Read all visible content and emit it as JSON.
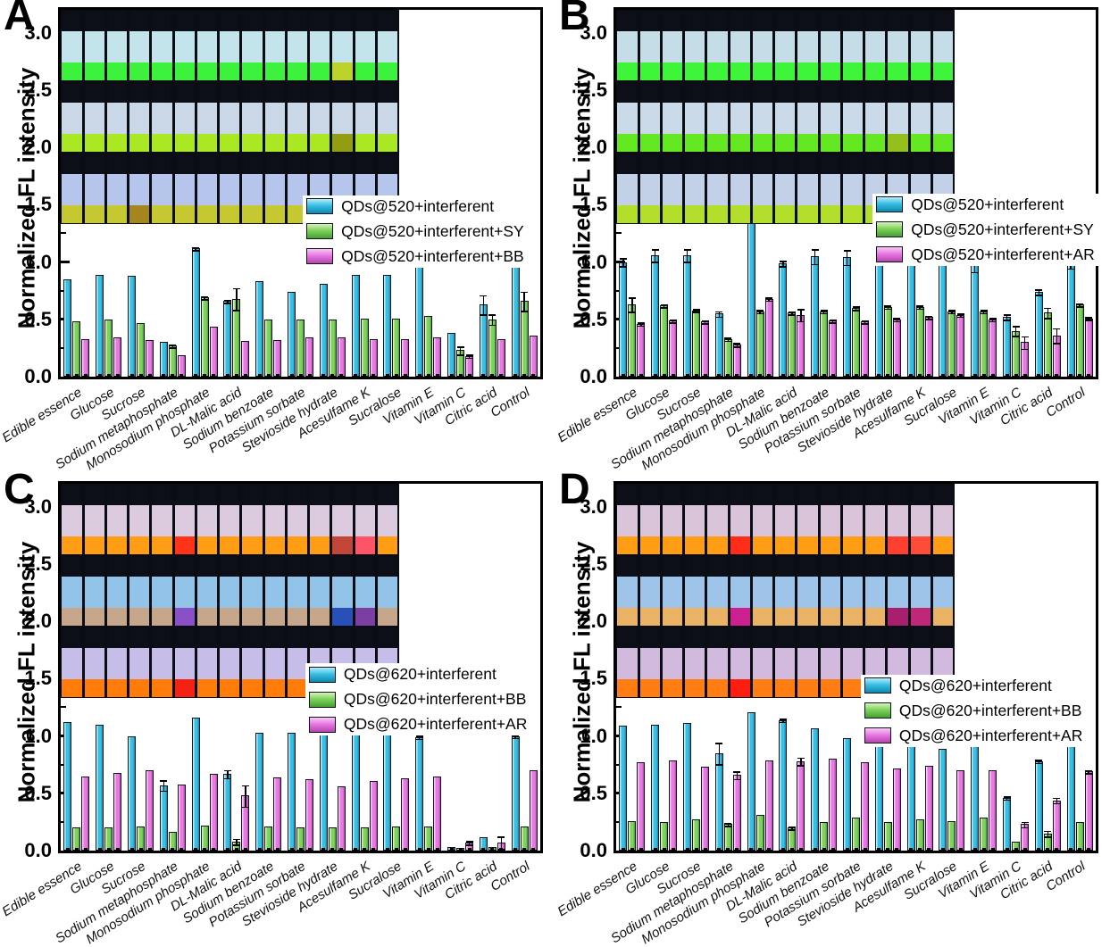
{
  "figure": {
    "ylabel": "Normalized FL intensity",
    "panel_letters": [
      "A",
      "B",
      "C",
      "D"
    ]
  },
  "axis": {
    "yticks": [
      "0.0",
      "0.5",
      "1.0",
      "1.5",
      "2.0",
      "2.5",
      "3.0"
    ],
    "ymax": 3.2
  },
  "colors": {
    "cyan": {
      "base": "#38bfe4",
      "light": "#b8ecf8",
      "dark": "#0f87ae"
    },
    "green": {
      "base": "#7fd35c",
      "light": "#d6f3bb",
      "dark": "#45a032"
    },
    "magenta": {
      "base": "#e97ae5",
      "light": "#f7c9f3",
      "dark": "#b445ac"
    },
    "outline": "#11131f"
  },
  "categories": [
    "Edible essence",
    "Glucose",
    "Sucrose",
    "Sodium metaphosphate",
    "Monosodium phosphate",
    "DL-Malic acid",
    "Sodium benzoate",
    "Potassium sorbate",
    "Stevioside hydrate",
    "Acesulfame K",
    "Sucralose",
    "Vitamin E",
    "Vitamin C",
    "Citric acid",
    "Control"
  ],
  "chart_data": [
    {
      "type": "bar",
      "panel": "A",
      "ylabel": "Normalized FL intensity",
      "ylim": [
        0,
        3.2
      ],
      "legend_pos": [
        0.505,
        0.505
      ],
      "categories": [
        "Edible essence",
        "Glucose",
        "Sucrose",
        "Sodium metaphosphate",
        "Monosodium phosphate",
        "DL-Malic acid",
        "Sodium benzoate",
        "Potassium sorbate",
        "Stevioside hydrate",
        "Acesulfame K",
        "Sucralose",
        "Vitamin E",
        "Vitamin C",
        "Citric acid",
        "Control"
      ],
      "series": [
        {
          "name": "QDs@520+interferent",
          "color": "cyan",
          "values": [
            0.85,
            0.89,
            0.88,
            0.3,
            1.12,
            0.66,
            0.83,
            0.74,
            0.81,
            0.89,
            0.89,
            0.97,
            0.38,
            0.63,
            1.0
          ],
          "errors": [
            0.01,
            0.01,
            0.01,
            0.01,
            0.02,
            0.02,
            0.01,
            0.01,
            0.01,
            0.01,
            0.01,
            0.01,
            0.01,
            0.09,
            0.01
          ]
        },
        {
          "name": "QDs@520+interferent+SY",
          "color": "green",
          "values": [
            0.48,
            0.5,
            0.47,
            0.27,
            0.69,
            0.68,
            0.5,
            0.5,
            0.5,
            0.51,
            0.51,
            0.53,
            0.23,
            0.5,
            0.66
          ],
          "errors": [
            0.01,
            0.01,
            0.01,
            0.02,
            0.02,
            0.1,
            0.01,
            0.01,
            0.01,
            0.01,
            0.01,
            0.01,
            0.04,
            0.05,
            0.09
          ]
        },
        {
          "name": "QDs@520+interferent+BB",
          "color": "magenta",
          "values": [
            0.33,
            0.34,
            0.32,
            0.19,
            0.44,
            0.31,
            0.32,
            0.34,
            0.34,
            0.33,
            0.33,
            0.34,
            0.18,
            0.33,
            0.36
          ],
          "errors": [
            0.01,
            0.01,
            0.01,
            0.01,
            0.01,
            0.01,
            0.01,
            0.01,
            0.01,
            0.01,
            0.01,
            0.01,
            0.02,
            0.01,
            0.01
          ]
        }
      ]
    },
    {
      "type": "bar",
      "panel": "B",
      "ylabel": "Normalized FL intensity",
      "ylim": [
        0,
        3.2
      ],
      "legend_pos": [
        0.535,
        0.5
      ],
      "categories": [
        "Edible essence",
        "Glucose",
        "Sucrose",
        "Sodium metaphosphate",
        "Monosodium phosphate",
        "DL-Malic acid",
        "Sodium benzoate",
        "Potassium sorbate",
        "Stevioside hydrate",
        "Acesulfame K",
        "Sucralose",
        "Vitamin E",
        "Vitamin C",
        "Citric acid",
        "Control"
      ],
      "series": [
        {
          "name": "QDs@520+interferent",
          "color": "cyan",
          "values": [
            1.0,
            1.06,
            1.06,
            0.55,
            1.41,
            0.99,
            1.05,
            1.04,
            1.05,
            1.1,
            1.11,
            0.98,
            0.52,
            0.74,
            1.0
          ],
          "errors": [
            0.04,
            0.06,
            0.06,
            0.03,
            0.07,
            0.03,
            0.07,
            0.07,
            0.07,
            0.06,
            0.07,
            0.07,
            0.03,
            0.03,
            0.06
          ]
        },
        {
          "name": "QDs@520+interferent+SY",
          "color": "green",
          "values": [
            0.63,
            0.62,
            0.58,
            0.33,
            0.57,
            0.56,
            0.57,
            0.6,
            0.61,
            0.61,
            0.57,
            0.57,
            0.4,
            0.56,
            0.63
          ],
          "errors": [
            0.07,
            0.02,
            0.02,
            0.02,
            0.02,
            0.02,
            0.02,
            0.02,
            0.02,
            0.02,
            0.02,
            0.02,
            0.05,
            0.05,
            0.02
          ]
        },
        {
          "name": "QDs@520+interferent+AR",
          "color": "magenta",
          "values": [
            0.46,
            0.49,
            0.48,
            0.28,
            0.68,
            0.54,
            0.49,
            0.48,
            0.5,
            0.52,
            0.54,
            0.5,
            0.3,
            0.36,
            0.51
          ],
          "errors": [
            0.02,
            0.02,
            0.02,
            0.02,
            0.02,
            0.06,
            0.02,
            0.02,
            0.02,
            0.02,
            0.02,
            0.02,
            0.06,
            0.07,
            0.02
          ]
        }
      ]
    },
    {
      "type": "bar",
      "panel": "C",
      "ylabel": "Normalized FL intensity",
      "ylim": [
        0,
        3.2
      ],
      "legend_pos": [
        0.51,
        0.49
      ],
      "categories": [
        "Edible essence",
        "Glucose",
        "Sucrose",
        "Sodium metaphosphate",
        "Monosodium phosphate",
        "DL-Malic acid",
        "Sodium benzoate",
        "Potassium sorbate",
        "Stevioside hydrate",
        "Acesulfame K",
        "Sucralose",
        "Vitamin E",
        "Vitamin C",
        "Citric acid",
        "Control"
      ],
      "series": [
        {
          "name": "QDs@620+interferent",
          "color": "cyan",
          "values": [
            1.12,
            1.1,
            1.0,
            0.57,
            1.16,
            0.67,
            1.03,
            1.03,
            1.04,
            1.06,
            1.01,
            0.99,
            0.03,
            0.12,
            1.0
          ],
          "errors": [
            0.01,
            0.01,
            0.01,
            0.05,
            0.01,
            0.04,
            0.01,
            0.01,
            0.02,
            0.02,
            0.01,
            0.02,
            0.01,
            0.01,
            0.02
          ]
        },
        {
          "name": "QDs@620+interferent+BB",
          "color": "green",
          "values": [
            0.2,
            0.2,
            0.21,
            0.16,
            0.22,
            0.08,
            0.21,
            0.2,
            0.2,
            0.2,
            0.21,
            0.21,
            0.02,
            0.03,
            0.21
          ],
          "errors": [
            0.01,
            0.01,
            0.01,
            0.01,
            0.01,
            0.03,
            0.01,
            0.01,
            0.01,
            0.01,
            0.01,
            0.01,
            0.01,
            0.01,
            0.01
          ]
        },
        {
          "name": "QDs@620+interferent+AR",
          "color": "magenta",
          "values": [
            0.65,
            0.68,
            0.7,
            0.58,
            0.67,
            0.48,
            0.64,
            0.62,
            0.56,
            0.61,
            0.63,
            0.65,
            0.07,
            0.07,
            0.7
          ],
          "errors": [
            0.01,
            0.01,
            0.01,
            0.01,
            0.01,
            0.1,
            0.01,
            0.01,
            0.01,
            0.01,
            0.01,
            0.01,
            0.02,
            0.06,
            0.01
          ]
        }
      ]
    },
    {
      "type": "bar",
      "panel": "D",
      "ylabel": "Normalized FL intensity",
      "ylim": [
        0,
        3.2
      ],
      "legend_pos": [
        0.51,
        0.52
      ],
      "categories": [
        "Edible essence",
        "Glucose",
        "Sucrose",
        "Sodium metaphosphate",
        "Monosodium phosphate",
        "DL-Malic acid",
        "Sodium benzoate",
        "Potassium sorbate",
        "Stevioside hydrate",
        "Acesulfame K",
        "Sucralose",
        "Vitamin E",
        "Vitamin C",
        "Citric acid",
        "Control"
      ],
      "series": [
        {
          "name": "QDs@620+interferent",
          "color": "cyan",
          "values": [
            1.09,
            1.1,
            1.11,
            0.85,
            1.21,
            1.14,
            1.07,
            0.98,
            0.97,
            1.04,
            0.89,
            0.91,
            0.46,
            0.78,
            1.0
          ],
          "errors": [
            0.01,
            0.01,
            0.01,
            0.1,
            0.01,
            0.02,
            0.01,
            0.01,
            0.01,
            0.01,
            0.01,
            0.01,
            0.02,
            0.02,
            0.01
          ]
        },
        {
          "name": "QDs@620+interferent+BB",
          "color": "green",
          "values": [
            0.26,
            0.25,
            0.27,
            0.23,
            0.31,
            0.2,
            0.25,
            0.29,
            0.25,
            0.27,
            0.26,
            0.29,
            0.08,
            0.15,
            0.25
          ],
          "errors": [
            0.01,
            0.01,
            0.01,
            0.02,
            0.01,
            0.02,
            0.01,
            0.01,
            0.01,
            0.01,
            0.01,
            0.01,
            0.01,
            0.03,
            0.01
          ]
        },
        {
          "name": "QDs@620+interferent+AR",
          "color": "magenta",
          "values": [
            0.77,
            0.79,
            0.73,
            0.66,
            0.79,
            0.78,
            0.8,
            0.77,
            0.72,
            0.74,
            0.7,
            0.7,
            0.23,
            0.44,
            0.69
          ],
          "errors": [
            0.01,
            0.01,
            0.01,
            0.04,
            0.01,
            0.04,
            0.01,
            0.01,
            0.01,
            0.01,
            0.01,
            0.01,
            0.03,
            0.03,
            0.02
          ]
        }
      ]
    }
  ],
  "insets": [
    {
      "rows": [
        {
          "body": "#c2e4ea",
          "liquid": "#3cf23c",
          "overrides": {
            "12": "#bcd32b"
          }
        },
        {
          "body": "#c9d7e7",
          "liquid": "#a9e822",
          "overrides": {
            "12": "#939d12"
          }
        },
        {
          "body": "#b6c5ec",
          "liquid": "#c6c832",
          "overrides": {
            "3": "#a5851e",
            "12": "#8f7a14"
          }
        }
      ]
    },
    {
      "rows": [
        {
          "body": "#c5dde6",
          "liquid": "#3ef53a",
          "overrides": {}
        },
        {
          "body": "#cbdae9",
          "liquid": "#63e821",
          "overrides": {
            "12": "#93c01a"
          }
        },
        {
          "body": "#c2d0e8",
          "liquid": "#b3df2c",
          "overrides": {
            "12": "#a4aa1e"
          }
        }
      ]
    },
    {
      "rows": [
        {
          "body": "#dccade",
          "liquid": "#ff9d15",
          "overrides": {
            "5": "#ff3318",
            "12": "#c24638",
            "13": "#ff5468"
          }
        },
        {
          "body": "#92c4ea",
          "liquid": "#c6a78c",
          "overrides": {
            "5": "#8a50c8",
            "12": "#2850b8",
            "13": "#7a3fa0"
          }
        },
        {
          "body": "#c6bee9",
          "liquid": "#ff7c0a",
          "overrides": {
            "5": "#f52112",
            "12": "#a6182e",
            "13": "#ff2824"
          }
        }
      ]
    },
    {
      "rows": [
        {
          "body": "#dac4da",
          "liquid": "#ff9d15",
          "overrides": {
            "5": "#ff2d18",
            "12": "#ff4030",
            "13": "#ff4c38"
          }
        },
        {
          "body": "#9ec4ea",
          "liquid": "#eab264",
          "overrides": {
            "5": "#cc2090",
            "12": "#a81f6e",
            "13": "#bf2878"
          }
        },
        {
          "body": "#d2bade",
          "liquid": "#ff7d12",
          "overrides": {
            "5": "#ff1d10",
            "12": "#ff2015",
            "13": "#ff3522"
          }
        }
      ]
    }
  ],
  "inset_size": [
    0.705,
    0.497
  ]
}
